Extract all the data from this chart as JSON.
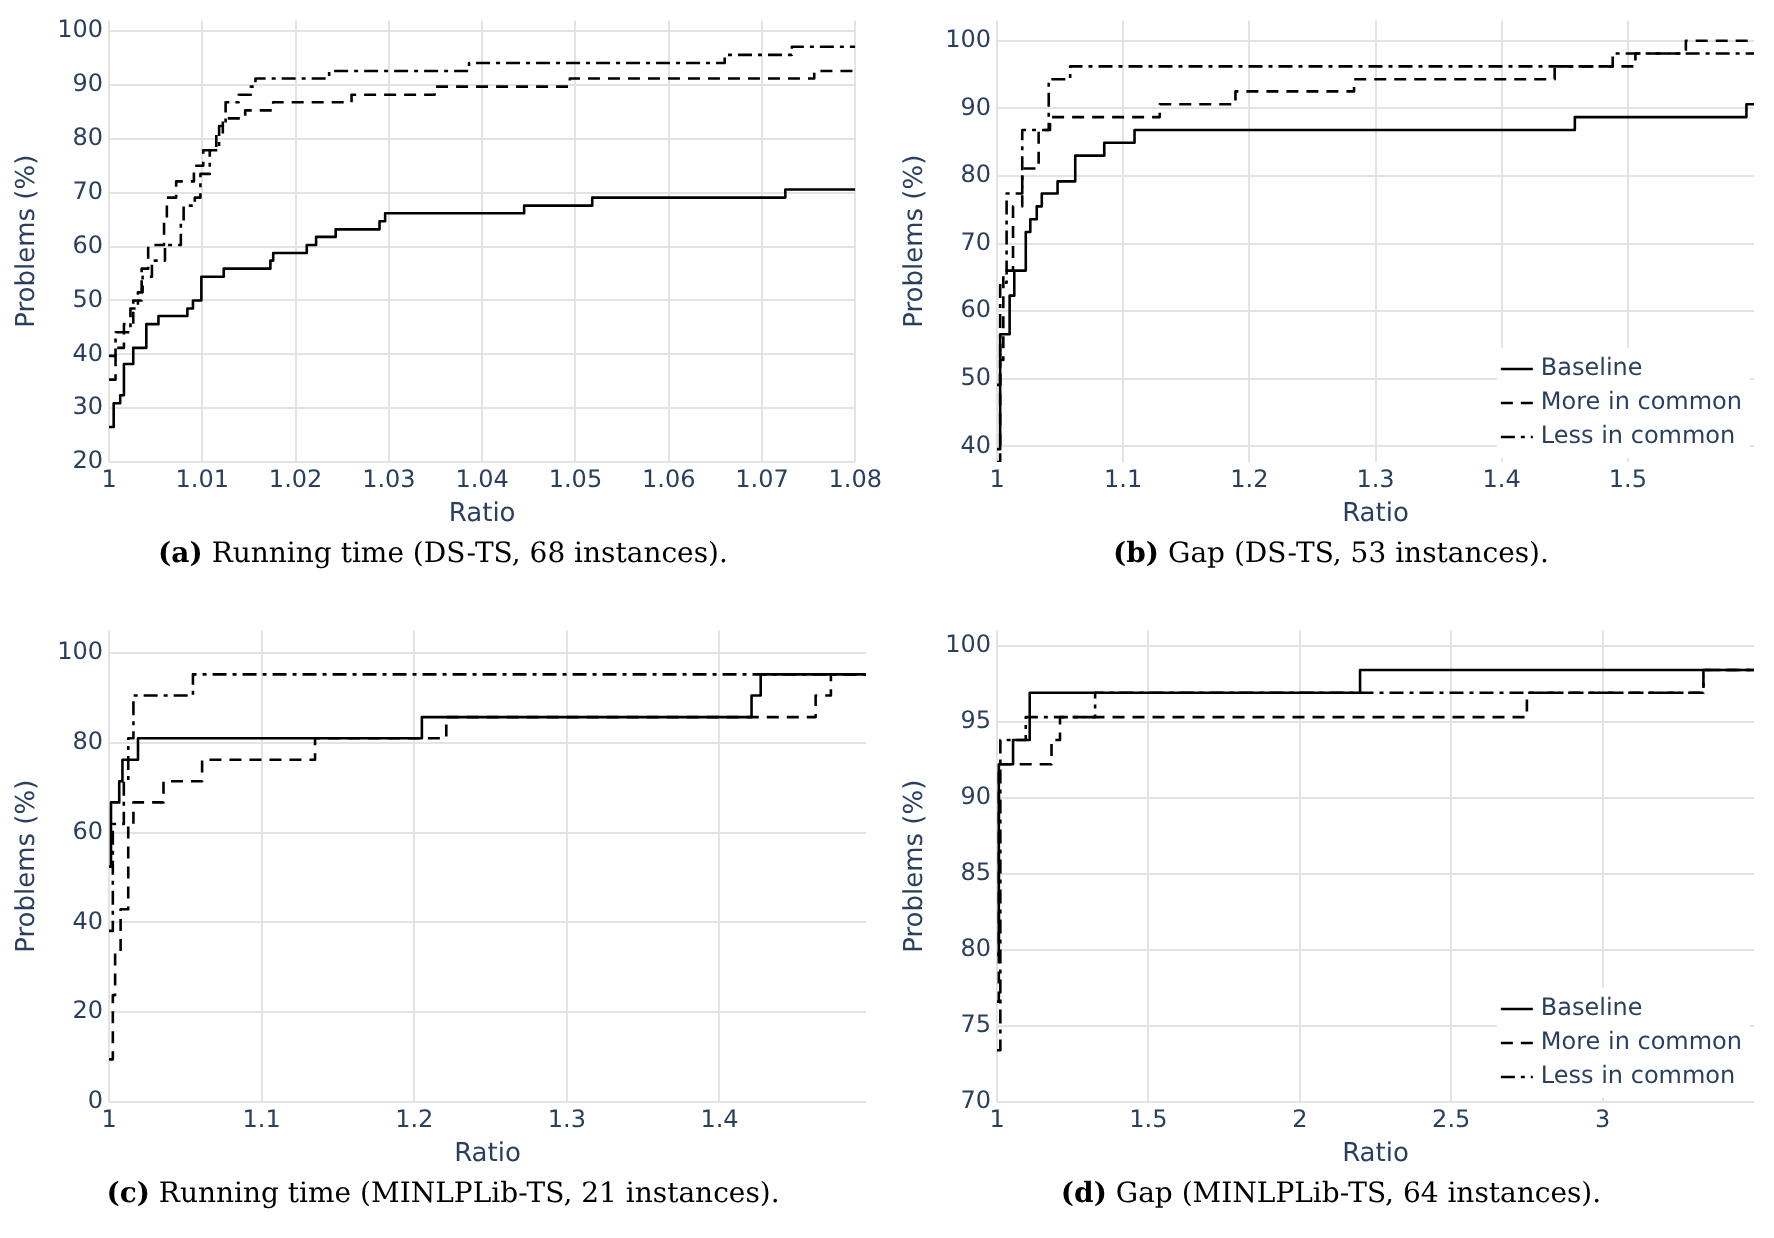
{
  "chart_data": [
    {
      "type": "step",
      "title": "(a) Running time (DS-TS, 68 instances).",
      "xlabel": "Ratio",
      "ylabel": "Problems (%)",
      "xlim": [
        1,
        1.08
      ],
      "xticks": [
        1,
        1.01,
        1.02,
        1.03,
        1.04,
        1.05,
        1.06,
        1.07,
        1.08
      ],
      "ylim": [
        20,
        102
      ],
      "yticks": [
        20,
        30,
        40,
        50,
        60,
        70,
        80,
        90,
        100
      ],
      "grid": true,
      "legend": false,
      "series": [
        {
          "color": "#000000",
          "line_style": "solid",
          "x": [
            1,
            1.0005,
            1.0012,
            1.0016,
            1.0026,
            1.004,
            1.0053,
            1.0084,
            1.009,
            1.0099,
            1.0123,
            1.0173,
            1.0176,
            1.0212,
            1.0222,
            1.0243,
            1.029,
            1.0296,
            1.0445,
            1.0518,
            1.0725,
            1.08
          ],
          "values": [
            26.5,
            30.9,
            32.4,
            38.2,
            41.2,
            45.6,
            47.1,
            48.5,
            50,
            54.4,
            55.9,
            57.4,
            58.8,
            60.3,
            61.8,
            63.2,
            64.7,
            66.2,
            67.6,
            69.1,
            70.6,
            70.6
          ]
        },
        {
          "color": "#000000",
          "line_style": "dashed",
          "x": [
            1,
            1.0007,
            1.0016,
            1.0026,
            1.0035,
            1.0042,
            1.0059,
            1.0062,
            1.0072,
            1.0091,
            1.0101,
            1.0115,
            1.0122,
            1.0146,
            1.0176,
            1.026,
            1.0349,
            1.0494,
            1.0756,
            1.08
          ],
          "values": [
            35.3,
            41.2,
            45.6,
            50,
            55.9,
            60.3,
            64.7,
            69.1,
            72.1,
            75,
            77.9,
            80.9,
            83.8,
            85.3,
            86.8,
            88.2,
            89.7,
            91.2,
            92.6,
            92.6
          ]
        },
        {
          "color": "#000000",
          "line_style": "dashdot",
          "x": [
            1,
            1.0007,
            1.0023,
            1.0031,
            1.0036,
            1.0046,
            1.006,
            1.0077,
            1.008,
            1.0092,
            1.0098,
            1.0108,
            1.0118,
            1.0125,
            1.0139,
            1.0152,
            1.0157,
            1.0236,
            1.0386,
            1.066,
            1.0732,
            1.08
          ],
          "values": [
            39.7,
            44.1,
            48.5,
            51.5,
            54.4,
            57.4,
            60.3,
            64.7,
            67.6,
            69.1,
            73.5,
            77.9,
            82.4,
            86.8,
            88.2,
            89.7,
            91.2,
            92.6,
            94.1,
            95.6,
            97.1,
            97.1
          ]
        }
      ]
    },
    {
      "type": "step",
      "title": "(b) Gap (DS-TS, 53 instances).",
      "xlabel": "Ratio",
      "ylabel": "Problems (%)",
      "xlim": [
        1,
        1.6
      ],
      "xticks": [
        1,
        1.1,
        1.2,
        1.3,
        1.4,
        1.5
      ],
      "ylim": [
        37.7,
        103
      ],
      "yticks": [
        40,
        50,
        60,
        70,
        80,
        90,
        100
      ],
      "grid": true,
      "legend": "bottom right",
      "series": [
        {
          "name": "Baseline",
          "color": "#000000",
          "line_style": "solid",
          "x": [
            1,
            1.0025,
            1.01,
            1.0137,
            1.0228,
            1.0264,
            1.0315,
            1.0355,
            1.048,
            1.062,
            1.085,
            1.109,
            1.458,
            1.594,
            1.6
          ],
          "values": [
            39.6,
            56.6,
            62.3,
            66,
            71.7,
            73.6,
            75.5,
            77.4,
            79.2,
            83,
            84.9,
            86.8,
            88.7,
            90.6,
            90.6
          ]
        },
        {
          "name": "More in common",
          "color": "#000000",
          "line_style": "dashed",
          "x": [
            1,
            1.0025,
            1.005,
            1.0127,
            1.02,
            1.033,
            1.042,
            1.129,
            1.189,
            1.283,
            1.442,
            1.506,
            1.546,
            1.6
          ],
          "values": [
            37.7,
            52.8,
            66,
            75.5,
            81.1,
            86.8,
            88.7,
            90.6,
            92.5,
            94.3,
            96.2,
            98.1,
            100,
            100
          ]
        },
        {
          "name": "Less in common",
          "color": "#000000",
          "line_style": "dashdot",
          "x": [
            1,
            1.0025,
            1.0076,
            1.02,
            1.041,
            1.058,
            1.488,
            1.6
          ],
          "values": [
            49.1,
            64.2,
            77.4,
            86.8,
            94.3,
            96.2,
            98.1,
            98.1
          ]
        }
      ]
    },
    {
      "type": "step",
      "title": "(c) Running time (MINLPLib-TS, 21 instances).",
      "xlabel": "Ratio",
      "ylabel": "Problems (%)",
      "xlim": [
        1,
        1.496
      ],
      "xticks": [
        1,
        1.1,
        1.2,
        1.3,
        1.4
      ],
      "ylim": [
        0,
        105
      ],
      "yticks": [
        0,
        20,
        40,
        60,
        80,
        100
      ],
      "grid": true,
      "legend": false,
      "series": [
        {
          "color": "#000000",
          "line_style": "solid",
          "x": [
            1,
            1.0013,
            1.0067,
            1.0088,
            1.019,
            1.205,
            1.421,
            1.427,
            1.496
          ],
          "values": [
            52.4,
            66.7,
            71.4,
            76.2,
            81,
            85.7,
            90.5,
            95.2,
            95.2
          ]
        },
        {
          "color": "#000000",
          "line_style": "dashed",
          "x": [
            1,
            1.0025,
            1.004,
            1.0076,
            1.0126,
            1.016,
            1.0357,
            1.061,
            1.135,
            1.221,
            1.463,
            1.473,
            1.496
          ],
          "values": [
            9.5,
            23.8,
            33.3,
            42.9,
            61.9,
            66.7,
            71.4,
            76.2,
            81,
            85.7,
            90.5,
            95.2,
            95.2
          ]
        },
        {
          "color": "#000000",
          "line_style": "dashdot",
          "x": [
            1,
            1.0025,
            1.0097,
            1.0126,
            1.016,
            1.055,
            1.496
          ],
          "values": [
            38.1,
            61.9,
            71.4,
            81,
            90.5,
            95.2,
            95.2
          ]
        }
      ]
    },
    {
      "type": "step",
      "title": "(d) Gap (MINLPLib-TS, 64 instances).",
      "xlabel": "Ratio",
      "ylabel": "Problems (%)",
      "xlim": [
        1,
        3.5
      ],
      "xticks": [
        1,
        1.5,
        2,
        2.5,
        3
      ],
      "ylim": [
        70,
        101
      ],
      "yticks": [
        70,
        75,
        80,
        85,
        90,
        95,
        100
      ],
      "grid": true,
      "legend": "bottom right",
      "series": [
        {
          "name": "Baseline",
          "color": "#000000",
          "line_style": "solid",
          "x": [
            1,
            1.006,
            1.053,
            1.108,
            2.199,
            3.5
          ],
          "values": [
            79.7,
            92.2,
            93.8,
            96.9,
            98.4,
            98.4
          ]
        },
        {
          "name": "More in common",
          "color": "#000000",
          "line_style": "dashed",
          "x": [
            1,
            1.006,
            1.18,
            1.208,
            2.75,
            3.333,
            3.5
          ],
          "values": [
            76.6,
            92.2,
            93.8,
            95.3,
            96.9,
            98.4,
            98.4
          ]
        },
        {
          "name": "Less in common",
          "color": "#000000",
          "line_style": "dashdot",
          "x": [
            1,
            1.011,
            1.095,
            1.324,
            3.333,
            3.5
          ],
          "values": [
            73.4,
            93.8,
            95.3,
            96.9,
            98.4,
            98.4
          ]
        }
      ]
    }
  ]
}
